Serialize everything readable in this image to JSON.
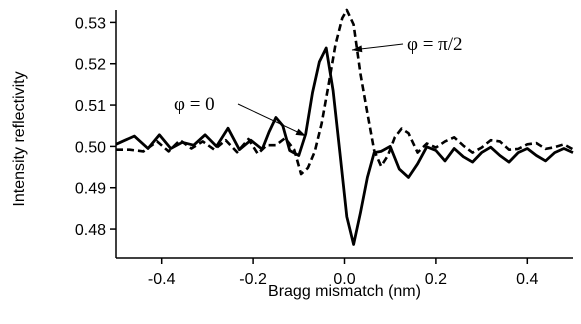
{
  "chart_data": {
    "type": "line",
    "xlabel": "Bragg mismatch (nm)",
    "ylabel": "Intensity reflectivity",
    "xlim": [
      -0.5,
      0.5
    ],
    "ylim": [
      0.473,
      0.533
    ],
    "x_ticks": [
      -0.4,
      -0.2,
      0.0,
      0.2,
      0.4
    ],
    "x_tick_labels": [
      "-0.4",
      "-0.2",
      "0.0",
      "0.2",
      "0.4"
    ],
    "y_ticks": [
      0.48,
      0.49,
      0.5,
      0.51,
      0.52,
      0.53
    ],
    "y_tick_labels": [
      "0.48",
      "0.49",
      "0.50",
      "0.51",
      "0.52",
      "0.53"
    ],
    "grid": false,
    "legend": "none",
    "series": [
      {
        "name": "φ = 0",
        "style": "solid",
        "color": "#000000",
        "x": [
          -0.5,
          -0.48,
          -0.46,
          -0.43,
          -0.405,
          -0.38,
          -0.355,
          -0.33,
          -0.305,
          -0.28,
          -0.255,
          -0.23,
          -0.205,
          -0.18,
          -0.165,
          -0.15,
          -0.135,
          -0.12,
          -0.1,
          -0.085,
          -0.07,
          -0.055,
          -0.04,
          -0.025,
          -0.01,
          0.005,
          0.02,
          0.035,
          0.05,
          0.065,
          0.08,
          0.1,
          0.12,
          0.14,
          0.16,
          0.18,
          0.2,
          0.22,
          0.24,
          0.26,
          0.28,
          0.3,
          0.32,
          0.34,
          0.36,
          0.38,
          0.4,
          0.42,
          0.44,
          0.46,
          0.48,
          0.5
        ],
        "y": [
          0.5005,
          0.5015,
          0.5025,
          0.4995,
          0.5028,
          0.4995,
          0.501,
          0.5003,
          0.5028,
          0.5,
          0.5044,
          0.4992,
          0.5015,
          0.4993,
          0.5035,
          0.507,
          0.505,
          0.499,
          0.4978,
          0.503,
          0.513,
          0.5205,
          0.5238,
          0.5135,
          0.4985,
          0.483,
          0.4763,
          0.484,
          0.4925,
          0.4985,
          0.4988,
          0.5,
          0.4945,
          0.4925,
          0.4958,
          0.4999,
          0.499,
          0.4965,
          0.4995,
          0.4975,
          0.4962,
          0.4985,
          0.4998,
          0.4978,
          0.4962,
          0.4985,
          0.4995,
          0.4978,
          0.4965,
          0.4985,
          0.4995,
          0.4985
        ]
      },
      {
        "name": "φ = π/2",
        "style": "dashed",
        "color": "#000000",
        "x": [
          -0.5,
          -0.47,
          -0.44,
          -0.41,
          -0.385,
          -0.36,
          -0.335,
          -0.31,
          -0.285,
          -0.26,
          -0.235,
          -0.21,
          -0.19,
          -0.17,
          -0.15,
          -0.13,
          -0.11,
          -0.095,
          -0.08,
          -0.065,
          -0.05,
          -0.035,
          -0.02,
          -0.005,
          0.005,
          0.02,
          0.035,
          0.05,
          0.065,
          0.08,
          0.095,
          0.11,
          0.125,
          0.14,
          0.16,
          0.18,
          0.2,
          0.22,
          0.24,
          0.26,
          0.28,
          0.3,
          0.32,
          0.34,
          0.36,
          0.38,
          0.4,
          0.42,
          0.44,
          0.46,
          0.48,
          0.5
        ],
        "y": [
          0.4992,
          0.4992,
          0.4988,
          0.5012,
          0.4988,
          0.5015,
          0.4995,
          0.5012,
          0.4992,
          0.5015,
          0.4986,
          0.5018,
          0.4982,
          0.5003,
          0.5003,
          0.502,
          0.4992,
          0.4933,
          0.4948,
          0.4988,
          0.5055,
          0.5148,
          0.5245,
          0.531,
          0.533,
          0.5295,
          0.5175,
          0.508,
          0.499,
          0.4952,
          0.4978,
          0.5022,
          0.5043,
          0.5032,
          0.4985,
          0.5007,
          0.4997,
          0.5012,
          0.5022,
          0.5002,
          0.4985,
          0.4997,
          0.5015,
          0.5012,
          0.4992,
          0.4994,
          0.5005,
          0.5008,
          0.4994,
          0.4998,
          0.5005,
          0.4993
        ]
      }
    ],
    "annotations": [
      {
        "text": "φ = 0",
        "series": 0
      },
      {
        "text": "φ = π/2",
        "series": 1
      }
    ]
  }
}
